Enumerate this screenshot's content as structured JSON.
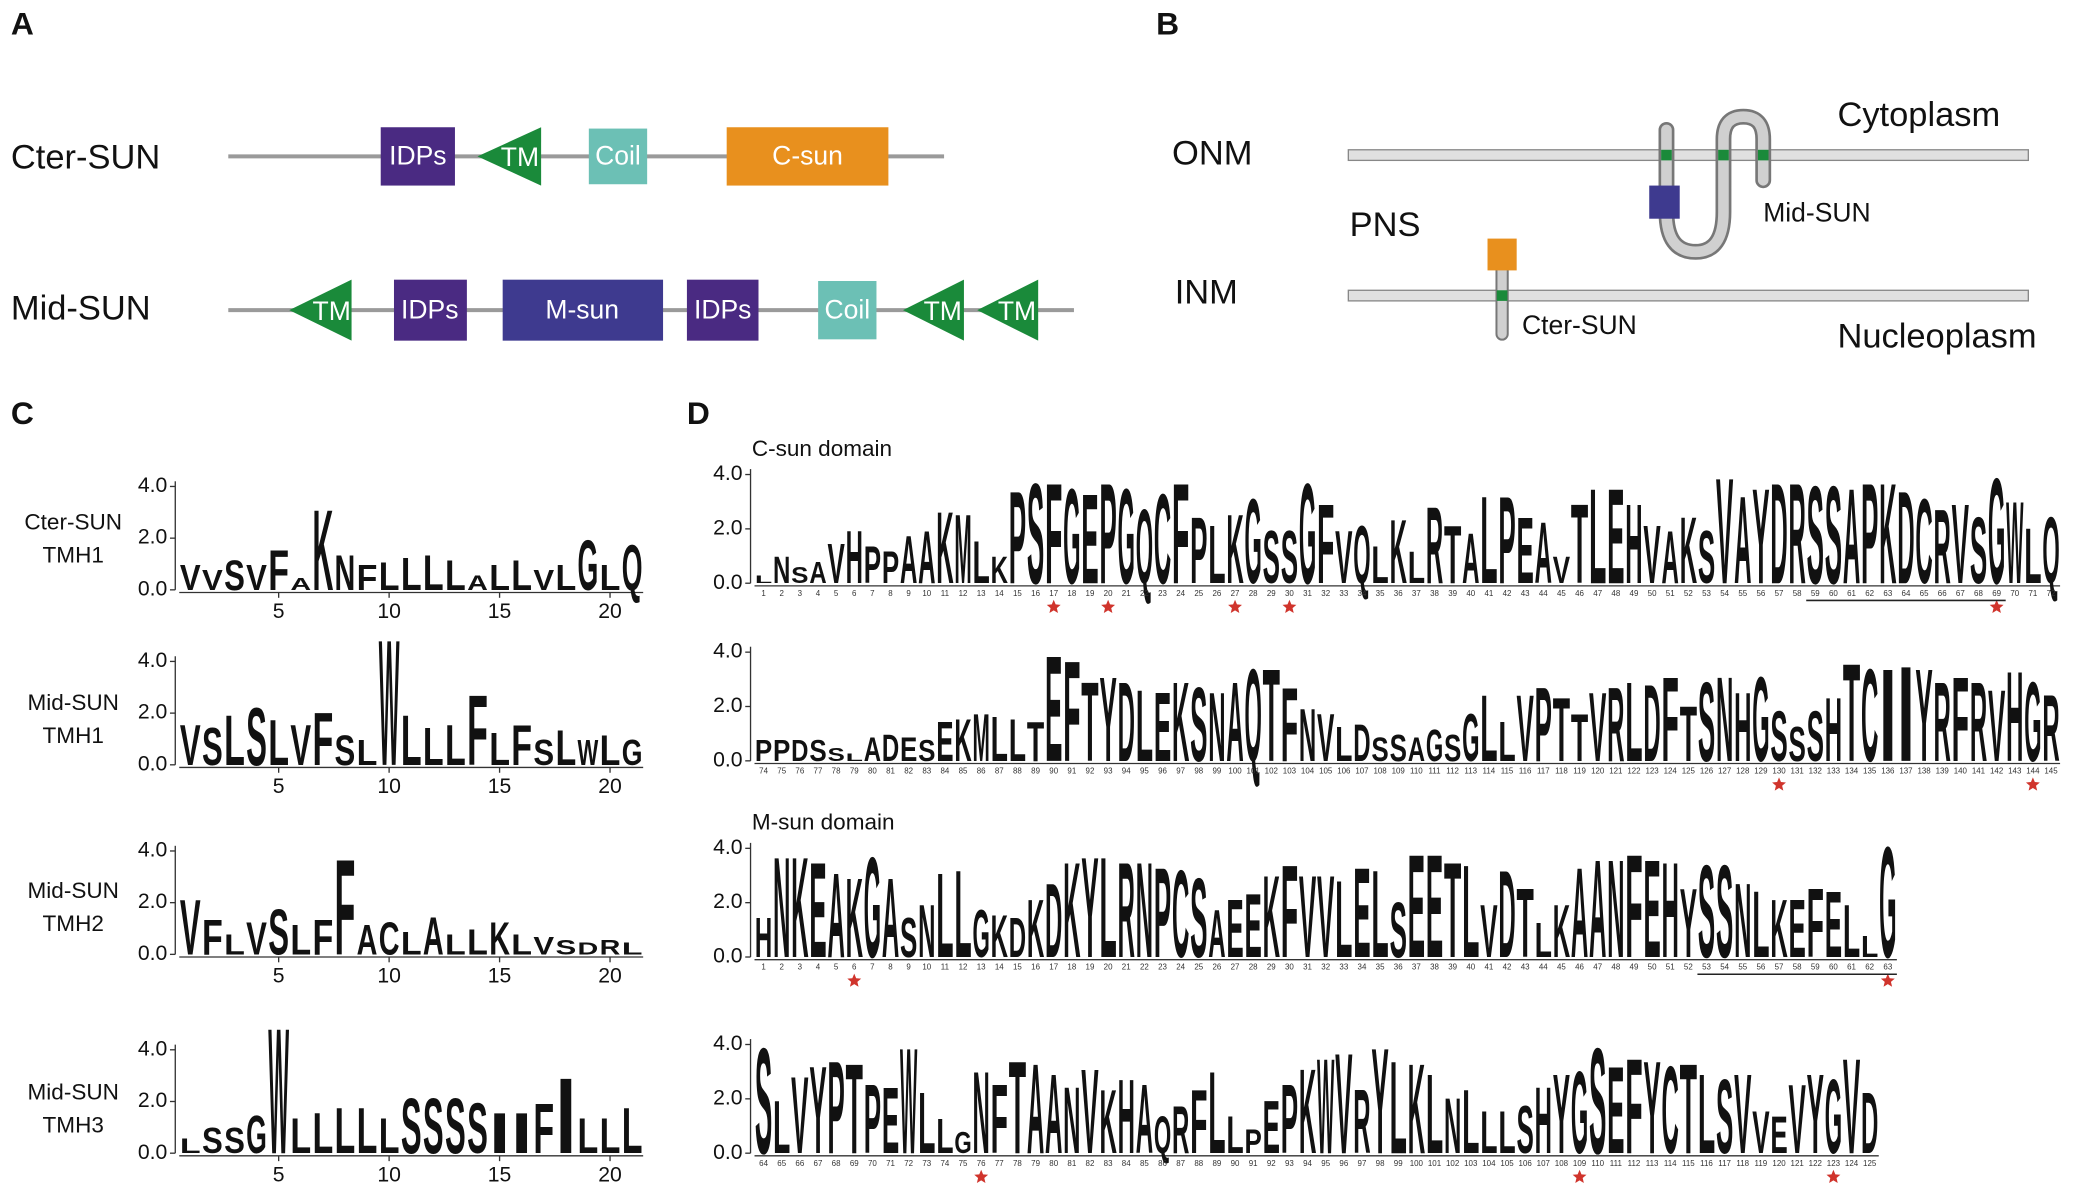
{
  "panel_labels": [
    "A",
    "B",
    "C",
    "D"
  ],
  "panel_a": {
    "rows": [
      {
        "label": "Cter-SUN",
        "domains": [
          "IDPs",
          "TM",
          "Coil",
          "C-sun"
        ]
      },
      {
        "label": "Mid-SUN",
        "domains": [
          "TM",
          "IDPs",
          "M-sun",
          "IDPs",
          "Coil",
          "TM",
          "TM"
        ]
      }
    ]
  },
  "panel_b": {
    "onm": "ONM",
    "inm": "INM",
    "pns": "PNS",
    "cytoplasm": "Cytoplasm",
    "nucleoplasm": "Nucleoplasm",
    "mid_sun": "Mid-SUN",
    "cter_sun": "Cter-SUN"
  },
  "letter_colors": {
    "A": "#f39019",
    "V": "#f39019",
    "F": "#f39019",
    "P": "#f39019",
    "I": "#f39019",
    "S": "#f39019",
    "M": "#2ca02c",
    "L": "#2ca02c",
    "T": "#2ca02c",
    "W": "#2ca02c",
    "Y": "#2ca02c",
    "N": "#2ca02c",
    "D": "#2ca02c",
    "C": "#1f6fa8",
    "G": "#1f6fa8",
    "K": "#1f6fa8",
    "H": "#1f6fa8",
    "Q": "#1f6fa8",
    "E": "#e31a1c",
    "R": "#e31a1c"
  },
  "chart_data": [
    {
      "type": "logo",
      "label": [
        "Cter-SUN",
        "TMH1"
      ],
      "letters": "VVSVFAKNFLLLLALLVLGLQ",
      "heights": [
        1.0,
        0.8,
        1.2,
        1.0,
        1.6,
        0.5,
        3.2,
        1.4,
        1.0,
        1.1,
        1.3,
        1.4,
        1.2,
        0.6,
        1.0,
        1.2,
        0.8,
        1.0,
        2.0,
        1.0,
        1.8
      ],
      "xlim": [
        0.5,
        21.5
      ],
      "xticks": [
        5,
        10,
        15,
        20
      ],
      "ylim": [
        0,
        4.2
      ],
      "yticks": [
        {
          "value": 0,
          "label": "0.0"
        },
        {
          "value": 2,
          "label": "2.0"
        },
        {
          "value": 4,
          "label": "4.0"
        }
      ]
    },
    {
      "type": "logo",
      "label": [
        "Mid-SUN",
        "TMH1"
      ],
      "letters": "VSLSLVFSLWLLLFLFSLWLG",
      "heights": [
        1.6,
        1.5,
        2.0,
        2.3,
        1.8,
        1.6,
        2.1,
        1.2,
        1.0,
        5.0,
        2.0,
        1.5,
        1.6,
        2.8,
        1.3,
        1.6,
        1.0,
        1.4,
        1.0,
        1.2,
        1.0
      ],
      "xlim": [
        0.5,
        21.5
      ],
      "xticks": [
        5,
        10,
        15,
        20
      ],
      "ylim": [
        0,
        4.2
      ],
      "yticks": [
        {
          "value": 0,
          "label": "0.0"
        },
        {
          "value": 2,
          "label": "2.0"
        },
        {
          "value": 4,
          "label": "4.0"
        }
      ]
    },
    {
      "type": "logo",
      "label": [
        "Mid-SUN",
        "TMH2"
      ],
      "letters": "VFLVSLFFACLALLKLVSDRL",
      "heights": [
        2.2,
        1.4,
        0.8,
        1.3,
        1.8,
        1.2,
        1.4,
        3.8,
        1.2,
        1.3,
        0.9,
        1.5,
        0.8,
        1.0,
        1.3,
        0.8,
        0.7,
        0.6,
        0.5,
        0.6,
        0.5
      ],
      "xlim": [
        0.5,
        21.5
      ],
      "xticks": [
        5,
        10,
        15,
        20
      ],
      "ylim": [
        0,
        4.2
      ],
      "yticks": [
        {
          "value": 0,
          "label": "0.0"
        },
        {
          "value": 2,
          "label": "2.0"
        },
        {
          "value": 4,
          "label": "4.0"
        }
      ]
    },
    {
      "type": "logo",
      "label": [
        "Mid-SUN",
        "TMH3"
      ],
      "letters": "LSSGWLLLLLSSSSIIFILLL",
      "heights": [
        0.6,
        1.0,
        1.0,
        1.5,
        5.0,
        1.4,
        1.6,
        1.8,
        1.8,
        1.4,
        2.2,
        2.2,
        2.2,
        2.0,
        1.6,
        1.6,
        2.0,
        3.0,
        1.4,
        1.4,
        1.8
      ],
      "xlim": [
        0.5,
        21.5
      ],
      "xticks": [
        5,
        10,
        15,
        20
      ],
      "ylim": [
        0,
        4.2
      ],
      "yticks": [
        {
          "value": 0,
          "label": "0.0"
        },
        {
          "value": 2,
          "label": "2.0"
        },
        {
          "value": 4,
          "label": "4.0"
        }
      ]
    },
    {
      "type": "seqlogo",
      "title": "C-sun domain",
      "letters": "LNSAVHPPAAKMLKPSFGEPGQCFPLKGSSGFVQLKLRTALPEAVTLEHVAKSVAYDRSSAPKDCRVSGWLQ",
      "heights": [
        0.3,
        1.0,
        0.6,
        0.8,
        1.5,
        2.0,
        1.4,
        1.2,
        1.8,
        2.0,
        2.7,
        2.6,
        1.6,
        1.0,
        3.5,
        3.8,
        3.8,
        3.6,
        3.4,
        3.8,
        3.6,
        2.8,
        3.4,
        3.8,
        2.5,
        2.2,
        2.6,
        3.2,
        2.0,
        2.0,
        3.8,
        3.0,
        2.0,
        2.2,
        1.4,
        2.4,
        1.2,
        2.9,
        2.2,
        1.9,
        3.3,
        3.3,
        2.5,
        2.3,
        1.0,
        3.0,
        3.6,
        3.6,
        3.0,
        2.2,
        2.0,
        2.5,
        2.0,
        4.0,
        3.3,
        3.6,
        3.8,
        3.8,
        3.7,
        3.7,
        3.6,
        3.8,
        3.8,
        3.5,
        3.2,
        2.8,
        3.0,
        2.5,
        4.0,
        3.1,
        2.1,
        2.5
      ],
      "positions": [
        1,
        2,
        3,
        4,
        5,
        6,
        7,
        8,
        9,
        10,
        11,
        12,
        13,
        14,
        15,
        16,
        17,
        18,
        19,
        20,
        21,
        22,
        23,
        24,
        25,
        26,
        27,
        28,
        29,
        30,
        31,
        32,
        33,
        34,
        35,
        36,
        37,
        38,
        39,
        40,
        41,
        42,
        43,
        44,
        45,
        46,
        47,
        48,
        49,
        50,
        51,
        52,
        53,
        54,
        55,
        56,
        57,
        58,
        59,
        60,
        61,
        62,
        63,
        64,
        65,
        66,
        67,
        68,
        69,
        70,
        71,
        72
      ],
      "stars": [
        17,
        20,
        27,
        30,
        69
      ],
      "underline": [
        59,
        69
      ],
      "ylim": [
        0,
        4.2
      ],
      "yticks": [
        {
          "value": 0,
          "label": "0.0"
        },
        {
          "value": 2,
          "label": "2.0"
        },
        {
          "value": 4,
          "label": "4.0"
        }
      ]
    },
    {
      "type": "seqlogo",
      "letters": "PPDSSLADESEKMLLTEFTYDLEKSNAQTFNVLDSSAGSGLLVPTTVRLDFTSNHGSSSHTCIIYRFRVHGR",
      "heights": [
        0.8,
        0.8,
        0.8,
        0.8,
        0.5,
        0.3,
        0.9,
        1.0,
        0.9,
        0.8,
        1.5,
        1.6,
        1.8,
        1.7,
        1.6,
        1.5,
        4.0,
        3.8,
        3.0,
        3.2,
        3.0,
        2.7,
        2.6,
        3.0,
        2.8,
        2.6,
        3.0,
        3.5,
        3.5,
        2.8,
        2.0,
        1.8,
        1.3,
        1.4,
        0.9,
        1.0,
        0.9,
        1.2,
        1.0,
        1.8,
        2.5,
        1.5,
        2.5,
        2.8,
        2.4,
        1.8,
        2.6,
        2.8,
        3.0,
        2.9,
        3.2,
        2.1,
        3.0,
        3.2,
        2.6,
        3.2,
        1.9,
        1.3,
        1.9,
        2.4,
        3.7,
        3.5,
        3.5,
        3.6,
        3.5,
        3.0,
        3.2,
        3.0,
        2.7,
        3.4,
        3.0,
        2.5
      ],
      "positions": [
        74,
        75,
        76,
        77,
        78,
        79,
        80,
        81,
        82,
        83,
        84,
        85,
        86,
        87,
        88,
        89,
        90,
        91,
        92,
        93,
        94,
        95,
        96,
        97,
        98,
        99,
        100,
        101,
        102,
        103,
        104,
        105,
        106,
        107,
        108,
        109,
        110,
        111,
        112,
        113,
        114,
        115,
        116,
        117,
        118,
        119,
        120,
        121,
        122,
        123,
        124,
        125,
        126,
        127,
        128,
        129,
        130,
        131,
        132,
        133,
        134,
        135,
        136,
        137,
        138,
        139,
        140,
        141,
        142,
        143,
        144,
        145
      ],
      "stars": [
        130,
        144
      ],
      "ylim": [
        0,
        4.2
      ],
      "yticks": [
        {
          "value": 0,
          "label": "0.0"
        },
        {
          "value": 2,
          "label": "2.0"
        },
        {
          "value": 4,
          "label": "4.0"
        }
      ]
    },
    {
      "type": "seqlogo",
      "title": "M-sun domain",
      "letters": "HNKEAKGASNLLGKDKDKYLRNPCSAEEKFVVLELSEETLVDTLKAANFEHYSSNLKEFELLG",
      "heights": [
        1.5,
        3.8,
        3.8,
        3.6,
        3.2,
        3.0,
        3.8,
        3.0,
        1.5,
        2.0,
        3.2,
        3.3,
        1.8,
        1.6,
        1.5,
        2.2,
        2.8,
        3.6,
        3.8,
        3.8,
        3.6,
        3.6,
        3.4,
        3.3,
        3.0,
        1.8,
        2.2,
        2.4,
        3.1,
        3.5,
        3.1,
        3.1,
        2.9,
        3.4,
        3.3,
        2.1,
        3.9,
        3.9,
        3.6,
        3.5,
        2.0,
        3.3,
        2.6,
        1.3,
        2.0,
        3.4,
        3.7,
        3.7,
        3.9,
        3.7,
        3.6,
        2.6,
        3.5,
        3.5,
        2.8,
        2.5,
        2.2,
        2.2,
        2.6,
        2.5,
        2.0,
        0.8,
        4.2
      ],
      "positions": [
        1,
        2,
        3,
        4,
        5,
        6,
        7,
        8,
        9,
        10,
        11,
        12,
        13,
        14,
        15,
        16,
        17,
        18,
        19,
        20,
        21,
        22,
        23,
        24,
        25,
        26,
        27,
        28,
        29,
        30,
        31,
        32,
        33,
        34,
        35,
        36,
        37,
        38,
        39,
        40,
        41,
        42,
        43,
        44,
        45,
        46,
        47,
        48,
        49,
        50,
        51,
        52,
        53,
        54,
        55,
        56,
        57,
        58,
        59,
        60,
        61,
        62,
        63
      ],
      "stars": [
        6,
        63
      ],
      "underline": [
        53,
        63
      ],
      "ylim": [
        0,
        4.2
      ],
      "yticks": [
        {
          "value": 0,
          "label": "0.0"
        },
        {
          "value": 2,
          "label": "2.0"
        },
        {
          "value": 4,
          "label": "4.0"
        }
      ]
    },
    {
      "type": "seqlogo",
      "letters": "SLVYPTPEWLLGNFTAANVKHAQRFLLPEPKWVRYLKLNLLLSHYGSEFYCTLSVVEVYGVD",
      "heights": [
        4.0,
        2.0,
        2.9,
        3.3,
        3.5,
        3.4,
        2.6,
        2.5,
        4.0,
        2.3,
        1.3,
        0.8,
        3.1,
        2.6,
        3.5,
        3.4,
        3.0,
        2.5,
        3.2,
        2.4,
        2.8,
        2.6,
        1.4,
        1.8,
        2.4,
        3.1,
        1.4,
        0.9,
        2.0,
        2.6,
        3.2,
        3.6,
        3.8,
        2.4,
        4.0,
        3.5,
        3.4,
        3.0,
        2.1,
        2.4,
        1.6,
        1.6,
        1.8,
        2.5,
        3.0,
        3.1,
        4.0,
        3.3,
        3.6,
        3.5,
        3.3,
        3.4,
        3.0,
        2.8,
        3.0,
        1.6,
        1.4,
        2.6,
        3.0,
        2.8,
        3.6,
        2.3
      ],
      "positions": [
        64,
        65,
        66,
        67,
        68,
        69,
        70,
        71,
        72,
        73,
        74,
        75,
        76,
        77,
        78,
        79,
        80,
        81,
        82,
        83,
        84,
        85,
        86,
        87,
        88,
        89,
        90,
        91,
        92,
        93,
        94,
        95,
        96,
        97,
        98,
        99,
        100,
        101,
        102,
        103,
        104,
        105,
        106,
        107,
        108,
        109,
        110,
        111,
        112,
        113,
        114,
        115,
        116,
        117,
        118,
        119,
        120,
        121,
        122,
        123,
        124,
        125
      ],
      "stars": [
        76,
        109,
        123
      ],
      "ylim": [
        0,
        4.2
      ],
      "yticks": [
        {
          "value": 0,
          "label": "0.0"
        },
        {
          "value": 2,
          "label": "2.0"
        },
        {
          "value": 4,
          "label": "4.0"
        }
      ]
    }
  ]
}
